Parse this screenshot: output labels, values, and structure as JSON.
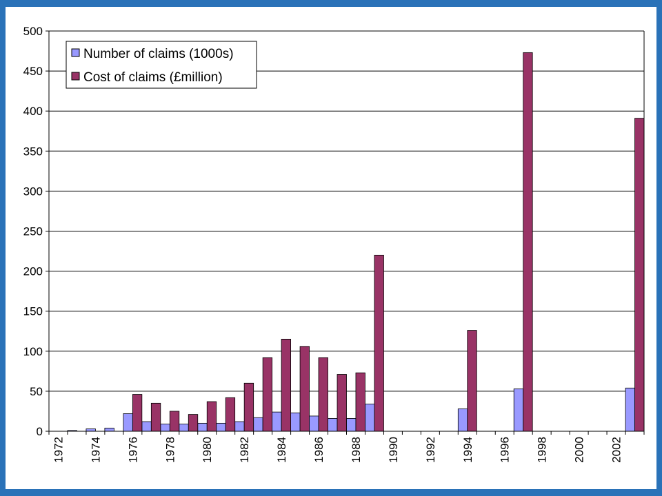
{
  "colors": {
    "frame": "#2a72b8",
    "series_claims": "#9999ff",
    "series_cost": "#993366",
    "gridline": "#000000"
  },
  "chart_data": {
    "type": "bar",
    "title": "",
    "xlabel": "",
    "ylabel": "",
    "ylim": [
      0,
      500
    ],
    "yticks": [
      0,
      50,
      100,
      150,
      200,
      250,
      300,
      350,
      400,
      450,
      500
    ],
    "grid": true,
    "legend_position": "top-left",
    "categories": [
      "1972",
      "1973",
      "1974",
      "1975",
      "1976",
      "1977",
      "1978",
      "1979",
      "1980",
      "1981",
      "1982",
      "1983",
      "1984",
      "1985",
      "1986",
      "1987",
      "1988",
      "1989",
      "1990",
      "1991",
      "1992",
      "1993",
      "1994",
      "1995",
      "1996",
      "1997",
      "1998",
      "1999",
      "2000",
      "2001",
      "2002",
      "2003"
    ],
    "xtick_labels": [
      "1972",
      "1974",
      "1976",
      "1978",
      "1980",
      "1982",
      "1984",
      "1986",
      "1988",
      "1990",
      "1992",
      "1994",
      "1996",
      "1998",
      "2000",
      "2002"
    ],
    "series": [
      {
        "name": "Number of claims (1000s)",
        "color": "#9999ff",
        "values": [
          0,
          1,
          3,
          4,
          22,
          12,
          9,
          9,
          10,
          10,
          12,
          17,
          24,
          23,
          19,
          16,
          16,
          34,
          0,
          0,
          0,
          0,
          28,
          0,
          0,
          53,
          0,
          0,
          0,
          0,
          0,
          54
        ]
      },
      {
        "name": "Cost of claims (£million)",
        "color": "#993366",
        "values": [
          0,
          0,
          0,
          0,
          46,
          35,
          25,
          21,
          37,
          42,
          60,
          92,
          115,
          106,
          92,
          71,
          73,
          220,
          0,
          0,
          0,
          0,
          126,
          0,
          0,
          473,
          0,
          0,
          0,
          0,
          0,
          391
        ]
      }
    ]
  }
}
